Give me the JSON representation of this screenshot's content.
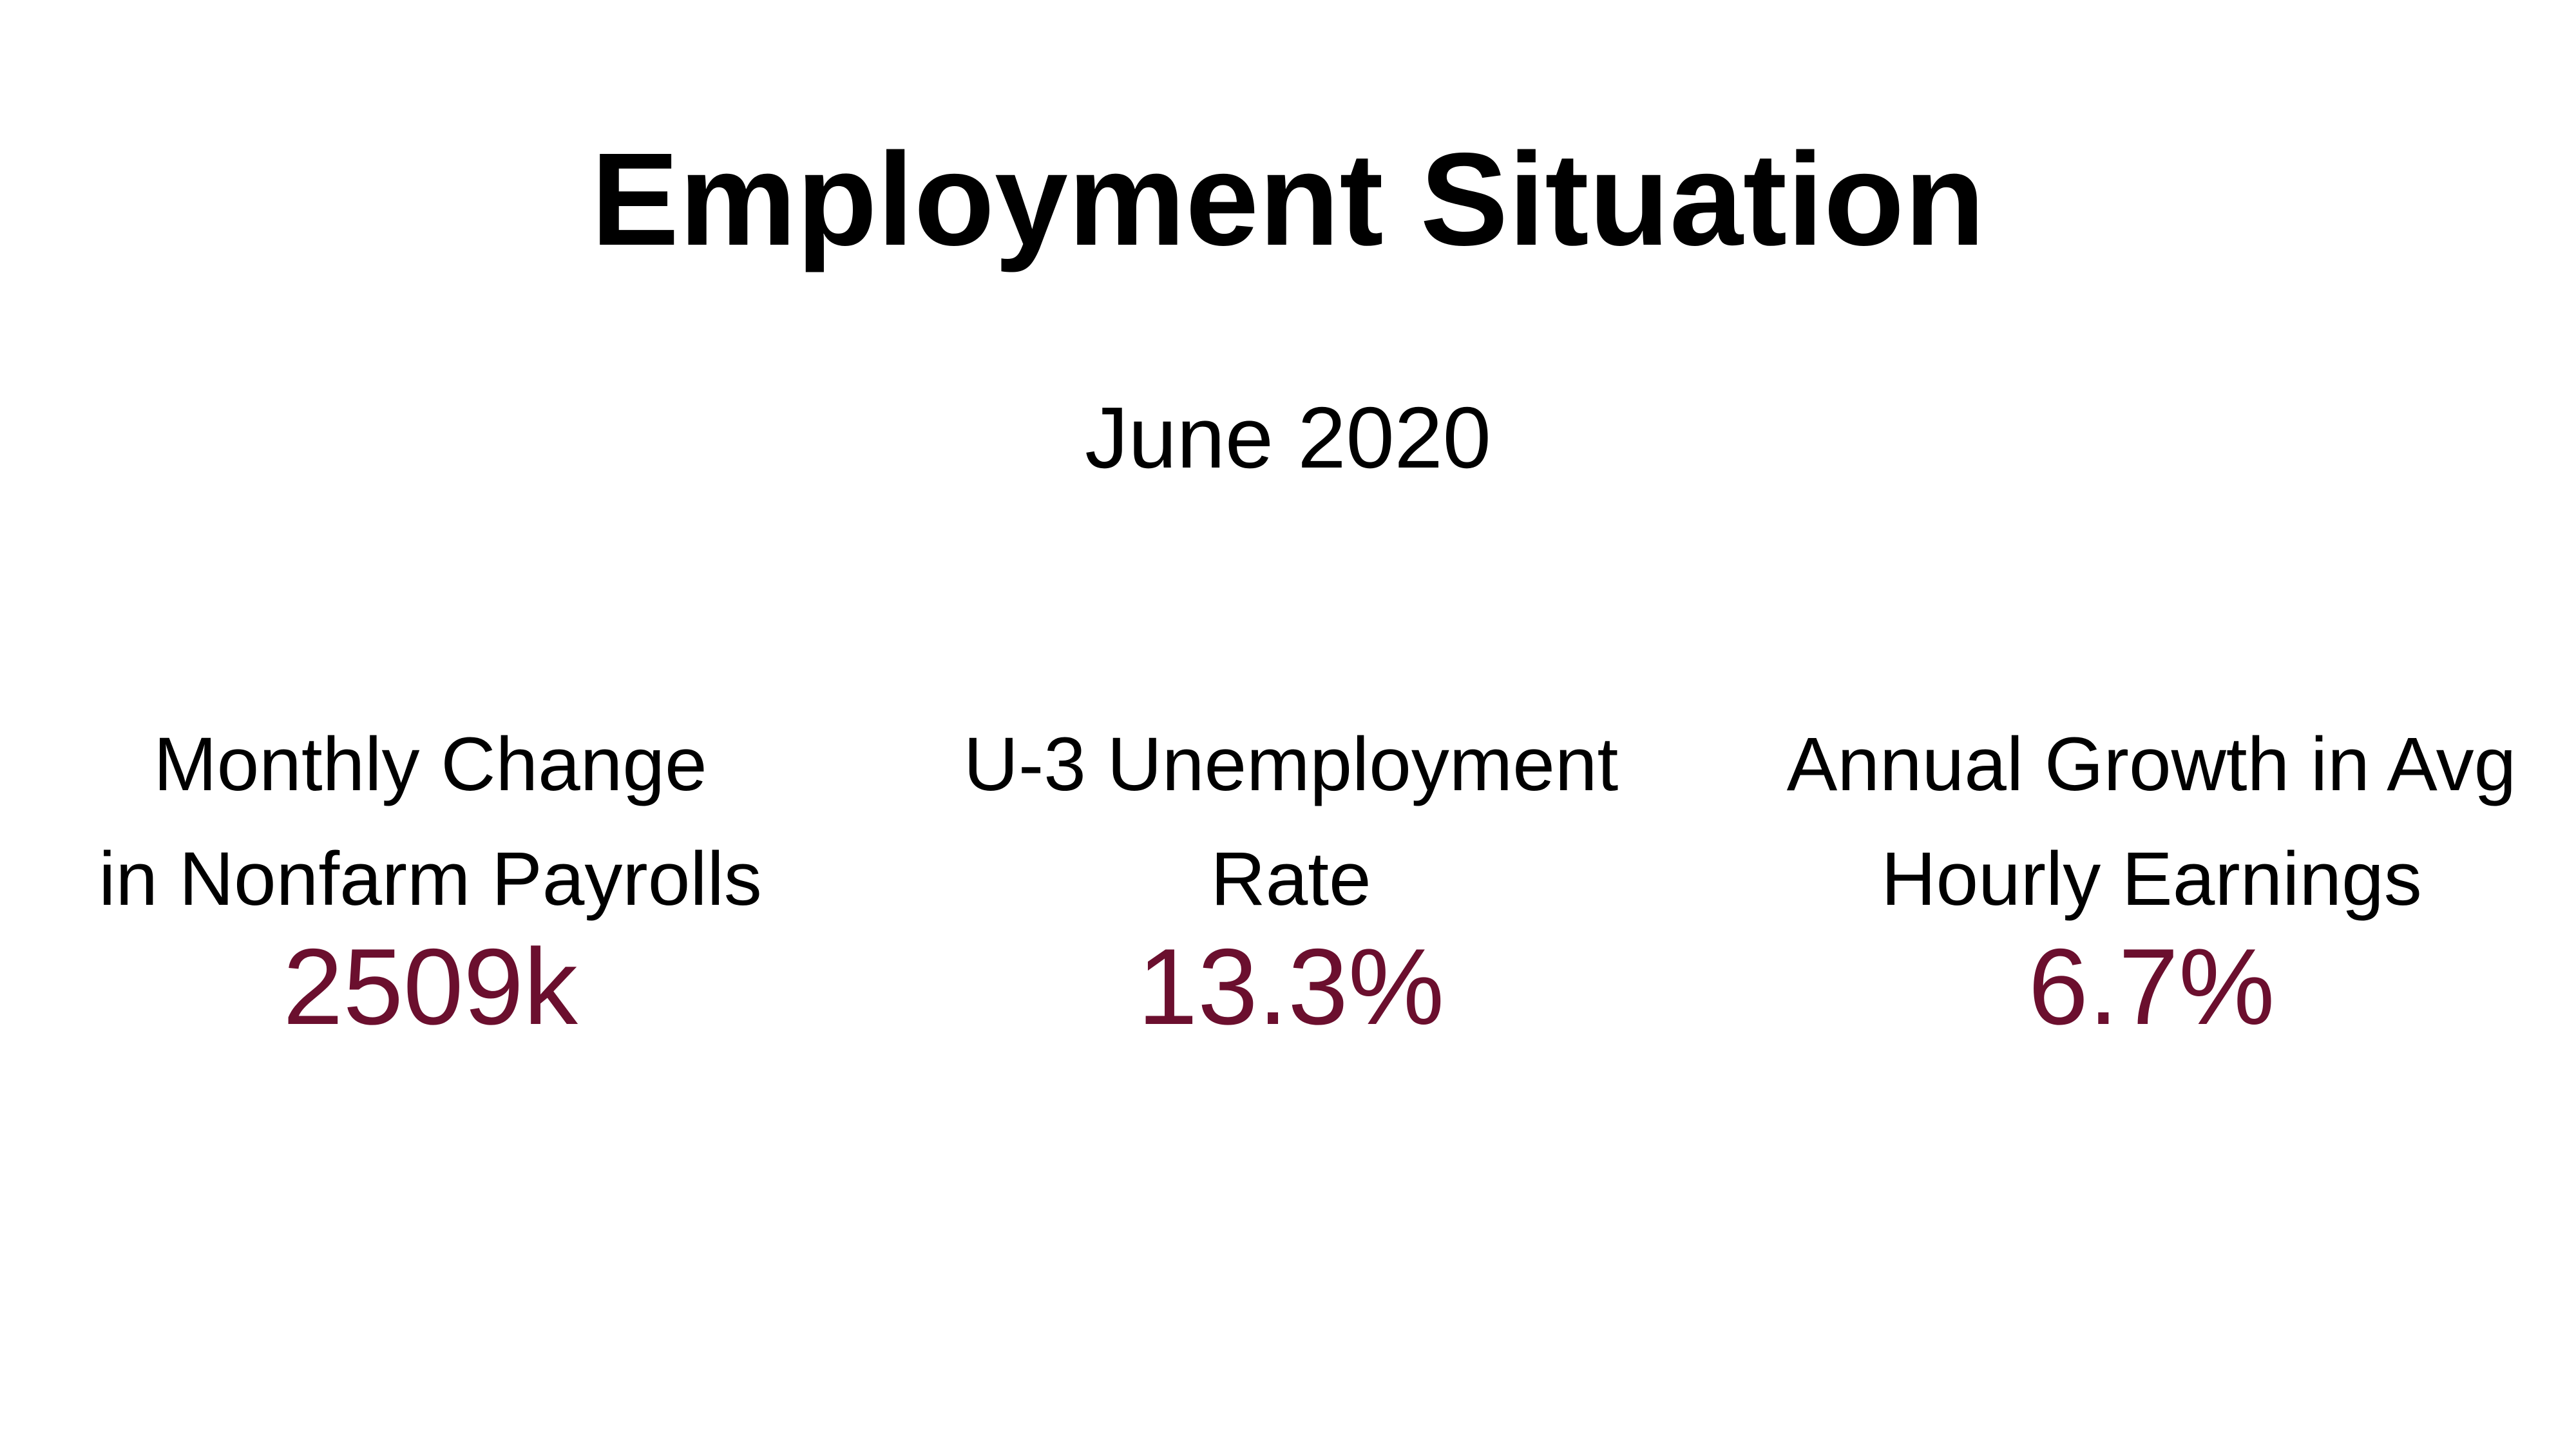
{
  "title": "Employment Situation",
  "subtitle": "June 2020",
  "value_color": "#6b0f2e",
  "metrics": [
    {
      "label": "Monthly Change\nin Nonfarm Payrolls",
      "value": "2509k"
    },
    {
      "label": "U-3 Unemployment\nRate",
      "value": "13.3%"
    },
    {
      "label": "Annual Growth in Avg\nHourly Earnings",
      "value": "6.7%"
    }
  ]
}
